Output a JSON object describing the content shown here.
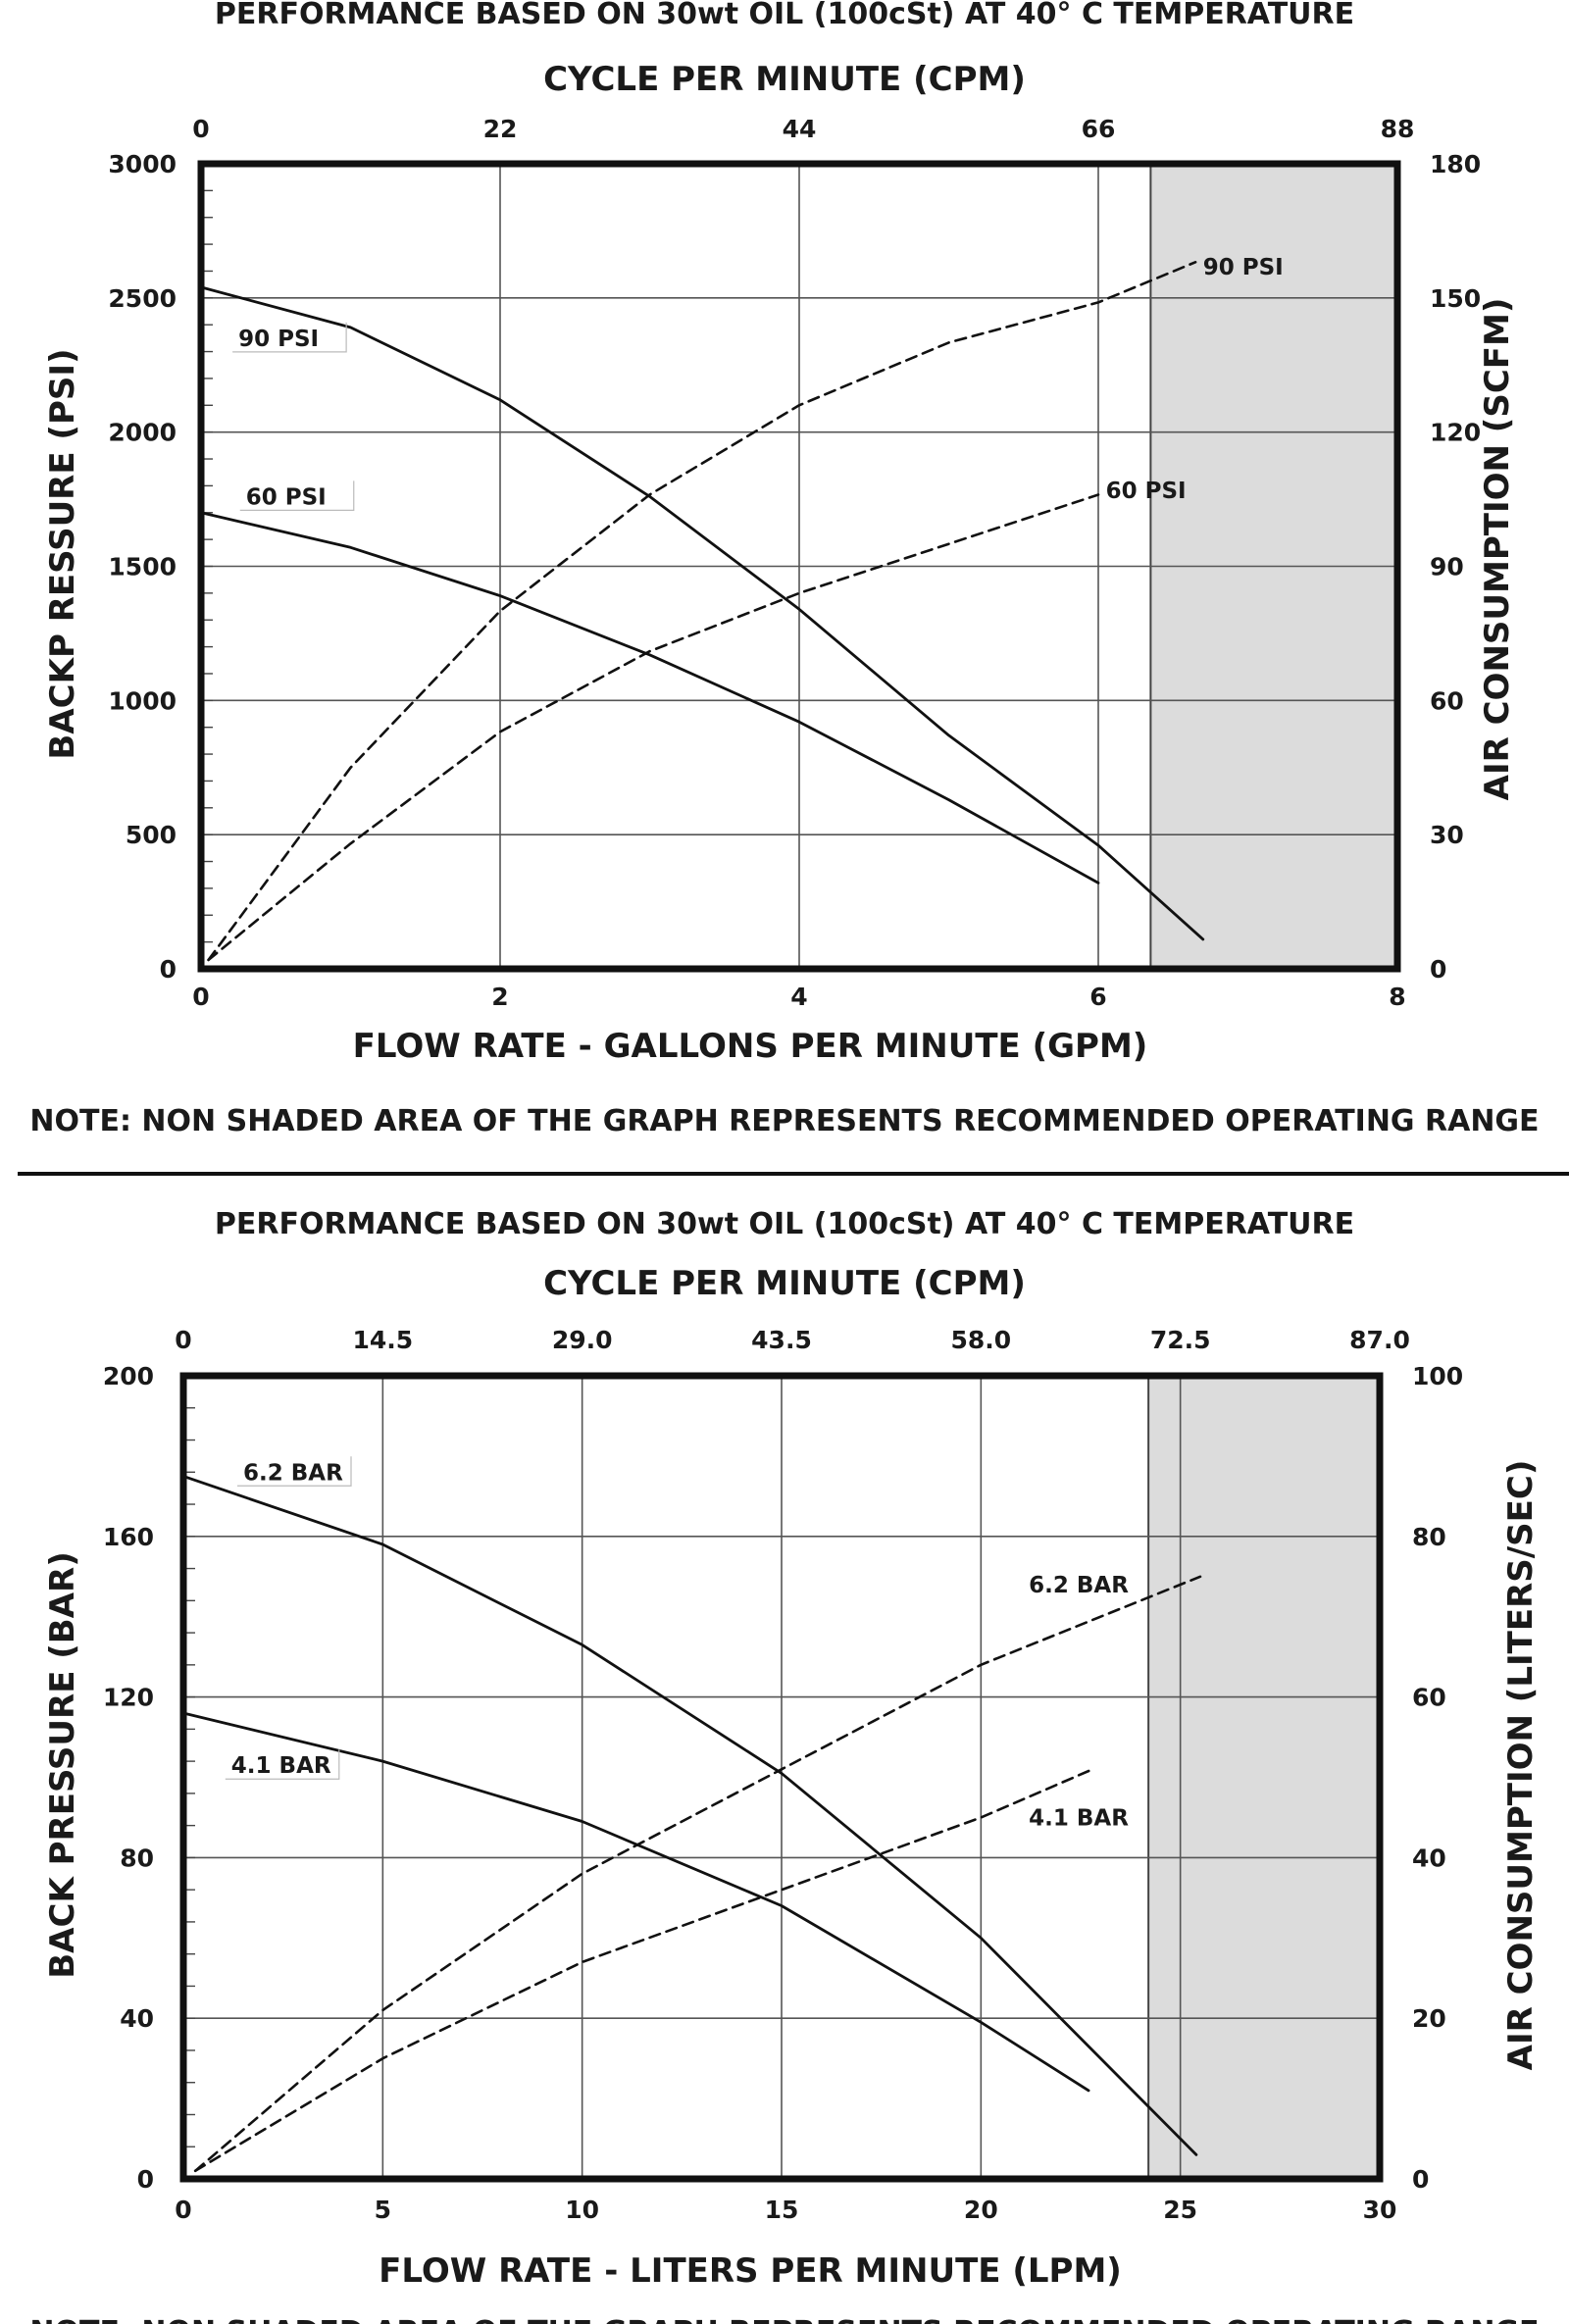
{
  "chart_data": [
    {
      "type": "line",
      "header": "PERFORMANCE BASED ON 30wt OIL (100cSt) AT 40° C TEMPERATURE",
      "top_axis_label": "CYCLE PER MINUTE (CPM)",
      "top_ticks": [
        "0",
        "22",
        "44",
        "66",
        "88"
      ],
      "xlabel": "FLOW RATE - GALLONS PER MINUTE (GPM)",
      "ylabel": "BACKP RESSURE (PSI)",
      "y2label": "AIR CONSUMPTION (SCFM)",
      "xlim": [
        0,
        8
      ],
      "ylim": [
        0,
        3000
      ],
      "y2lim": [
        0,
        180
      ],
      "x_ticks": [
        "0",
        "2",
        "4",
        "6",
        "8"
      ],
      "y_ticks": [
        "0",
        "500",
        "1000",
        "1500",
        "2000",
        "2500",
        "3000"
      ],
      "y2_ticks": [
        "0",
        "30",
        "60",
        "90",
        "120",
        "150",
        "180"
      ],
      "shaded_x_range": [
        6.35,
        8
      ],
      "grid": true,
      "series": [
        {
          "name": "90 PSI",
          "kind": "pressure",
          "axis": "left",
          "style": "solid",
          "label_at": [
            0.25,
            2350
          ],
          "points": [
            [
              0,
              2540
            ],
            [
              1,
              2390
            ],
            [
              2,
              2120
            ],
            [
              3,
              1760
            ],
            [
              4,
              1340
            ],
            [
              5,
              870
            ],
            [
              6,
              460
            ],
            [
              6.7,
              110
            ]
          ]
        },
        {
          "name": "60 PSI",
          "kind": "pressure",
          "axis": "left",
          "style": "solid",
          "label_at": [
            0.3,
            1760
          ],
          "points": [
            [
              0,
              1700
            ],
            [
              1,
              1570
            ],
            [
              2,
              1390
            ],
            [
              3,
              1170
            ],
            [
              4,
              920
            ],
            [
              5,
              630
            ],
            [
              6,
              320
            ]
          ]
        },
        {
          "name": "90 PSI",
          "kind": "air",
          "axis": "right",
          "style": "dashed",
          "label_at": [
            6.7,
            157
          ],
          "points": [
            [
              0.05,
              2
            ],
            [
              1,
              45
            ],
            [
              2,
              80
            ],
            [
              3,
              106
            ],
            [
              4,
              126
            ],
            [
              5,
              140
            ],
            [
              6,
              149
            ],
            [
              6.65,
              158
            ]
          ]
        },
        {
          "name": "60 PSI",
          "kind": "air",
          "axis": "right",
          "style": "dashed",
          "label_at": [
            6.05,
            107
          ],
          "points": [
            [
              0.05,
              2
            ],
            [
              1,
              28
            ],
            [
              2,
              53
            ],
            [
              3,
              71
            ],
            [
              4,
              84
            ],
            [
              5,
              95
            ],
            [
              6,
              106
            ]
          ]
        }
      ],
      "note": "NOTE: NON SHADED AREA OF THE GRAPH REPRESENTS RECOMMENDED OPERATING RANGE"
    },
    {
      "type": "line",
      "header": "PERFORMANCE BASED ON 30wt OIL (100cSt) AT 40° C TEMPERATURE",
      "top_axis_label": "CYCLE PER MINUTE (CPM)",
      "top_ticks": [
        "0",
        "14.5",
        "29.0",
        "43.5",
        "58.0",
        "72.5",
        "87.0"
      ],
      "xlabel": "FLOW RATE - LITERS PER MINUTE (LPM)",
      "ylabel": "BACK PRESSURE (BAR)",
      "y2label": "AIR CONSUMPTION (LITERS/SEC)",
      "xlim": [
        0,
        30
      ],
      "ylim": [
        0,
        200
      ],
      "y2lim": [
        0,
        100
      ],
      "x_ticks": [
        "0",
        "5",
        "10",
        "15",
        "20",
        "25",
        "30"
      ],
      "y_ticks": [
        "0",
        "40",
        "80",
        "120",
        "160",
        "200"
      ],
      "y2_ticks": [
        "0",
        "20",
        "40",
        "60",
        "80",
        "100"
      ],
      "shaded_x_range": [
        24.2,
        30
      ],
      "grid": true,
      "series": [
        {
          "name": "6.2 BAR",
          "kind": "pressure",
          "axis": "left",
          "style": "solid",
          "label_at": [
            1.5,
            176
          ],
          "points": [
            [
              0,
              175
            ],
            [
              5,
              158
            ],
            [
              10,
              133
            ],
            [
              15,
              101
            ],
            [
              20,
              60
            ],
            [
              25.4,
              6
            ]
          ]
        },
        {
          "name": "4.1 BAR",
          "kind": "pressure",
          "axis": "left",
          "style": "solid",
          "label_at": [
            1.2,
            103
          ],
          "points": [
            [
              0,
              116
            ],
            [
              5,
              104
            ],
            [
              10,
              89
            ],
            [
              15,
              68
            ],
            [
              20,
              39
            ],
            [
              22.7,
              22
            ]
          ]
        },
        {
          "name": "6.2 BAR",
          "kind": "air",
          "axis": "right",
          "style": "dashed",
          "label_at": [
            21.2,
            74
          ],
          "points": [
            [
              0.3,
              1
            ],
            [
              5,
              21
            ],
            [
              10,
              38
            ],
            [
              15,
              51
            ],
            [
              20,
              64
            ],
            [
              25.5,
              75
            ]
          ]
        },
        {
          "name": "4.1 BAR",
          "kind": "air",
          "axis": "right",
          "style": "dashed",
          "label_at": [
            21.2,
            45
          ],
          "points": [
            [
              0.3,
              1
            ],
            [
              5,
              15
            ],
            [
              10,
              27
            ],
            [
              15,
              36
            ],
            [
              20,
              45
            ],
            [
              22.8,
              51
            ]
          ]
        }
      ],
      "note": "NOTE: NON SHADED AREA OF THE GRAPH REPRESENTS RECOMMENDED OPERATING RANGE"
    }
  ]
}
